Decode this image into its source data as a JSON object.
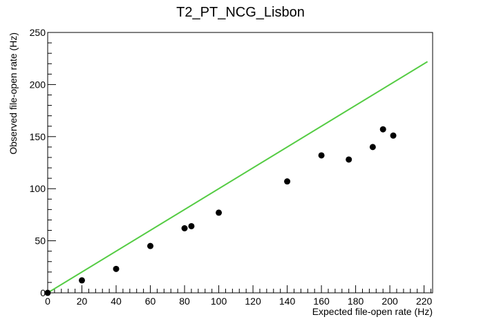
{
  "chart_data": {
    "type": "scatter",
    "title": "T2_PT_NCG_Lisbon",
    "xlabel": "Expected file-open rate (Hz)",
    "ylabel": "Observed file-open rate (Hz)",
    "xlim": [
      0,
      225
    ],
    "ylim": [
      0,
      250
    ],
    "x_ticks": [
      0,
      20,
      40,
      60,
      80,
      100,
      120,
      140,
      160,
      180,
      200,
      220
    ],
    "y_ticks": [
      0,
      50,
      100,
      150,
      200,
      250
    ],
    "grid": false,
    "legend": "none",
    "series": [
      {
        "type": "scatter",
        "color": "#000000",
        "x": [
          0,
          20,
          40,
          60,
          80,
          84,
          100,
          140,
          160,
          176,
          190,
          196,
          202
        ],
        "y": [
          0,
          12,
          23,
          45,
          62,
          64,
          77,
          107,
          132,
          128,
          140,
          157,
          151
        ]
      },
      {
        "type": "line",
        "color": "#55cc44",
        "x": [
          0,
          222
        ],
        "y": [
          0,
          222
        ]
      }
    ]
  }
}
